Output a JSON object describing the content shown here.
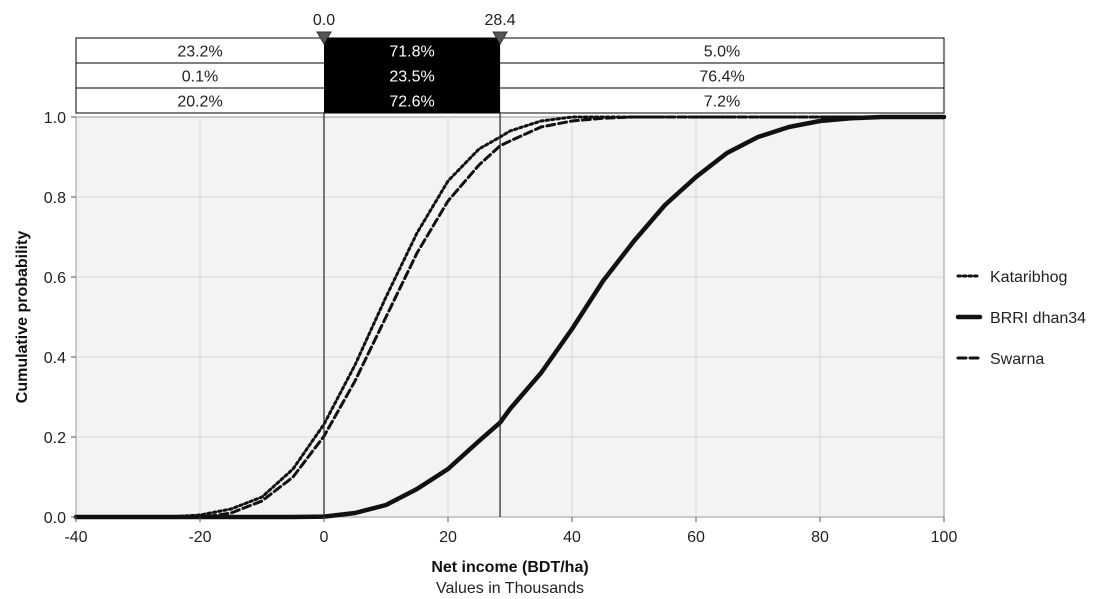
{
  "chart_data": {
    "type": "line",
    "xlabel": "Net income (BDT/ha)",
    "xlabel_sub": "Values in Thousands",
    "ylabel": "Cumulative probability",
    "xlim": [
      -40,
      100
    ],
    "ylim": [
      0,
      1
    ],
    "x_ticks": [
      "-40",
      "-20",
      "0",
      "20",
      "40",
      "60",
      "80",
      "100"
    ],
    "y_ticks": [
      "0.0",
      "0.2",
      "0.4",
      "0.6",
      "0.8",
      "1.0"
    ],
    "grid": true,
    "legend_position": "right",
    "delimiters": {
      "left_label": "0.0",
      "right_label": "28.4",
      "left_value": 0.0,
      "right_value": 28.4
    },
    "band_table": [
      {
        "series": "Kataribhog",
        "left": "23.2%",
        "middle": "71.8%",
        "right": "5.0%"
      },
      {
        "series": "BRRI dhan34",
        "left": "0.1%",
        "middle": "23.5%",
        "right": "76.4%"
      },
      {
        "series": "Swarna",
        "left": "20.2%",
        "middle": "72.6%",
        "right": "7.2%"
      }
    ],
    "series": [
      {
        "name": "Kataribhog",
        "style": "dotted",
        "x": [
          -40,
          -25,
          -20,
          -15,
          -10,
          -5,
          0,
          5,
          10,
          15,
          20,
          25,
          28.4,
          30,
          35,
          40,
          100
        ],
        "y": [
          0.0,
          0.0,
          0.005,
          0.02,
          0.05,
          0.12,
          0.232,
          0.38,
          0.55,
          0.71,
          0.84,
          0.92,
          0.95,
          0.965,
          0.99,
          1.0,
          1.0
        ]
      },
      {
        "name": "BRRI dhan34",
        "style": "solid",
        "x": [
          -40,
          -5,
          0,
          5,
          10,
          15,
          20,
          25,
          28.4,
          30,
          35,
          40,
          45,
          50,
          55,
          60,
          65,
          70,
          75,
          80,
          85,
          90,
          100
        ],
        "y": [
          0.0,
          0.0,
          0.001,
          0.01,
          0.03,
          0.07,
          0.12,
          0.19,
          0.236,
          0.27,
          0.36,
          0.47,
          0.59,
          0.69,
          0.78,
          0.85,
          0.91,
          0.95,
          0.975,
          0.99,
          0.997,
          1.0,
          1.0
        ]
      },
      {
        "name": "Swarna",
        "style": "dashed",
        "x": [
          -40,
          -22,
          -18,
          -15,
          -10,
          -5,
          0,
          5,
          10,
          15,
          20,
          25,
          28.4,
          30,
          35,
          40,
          45,
          50,
          100
        ],
        "y": [
          0.0,
          0.0,
          0.003,
          0.01,
          0.04,
          0.1,
          0.202,
          0.34,
          0.5,
          0.66,
          0.79,
          0.88,
          0.928,
          0.94,
          0.975,
          0.99,
          0.997,
          1.0,
          1.0
        ]
      }
    ]
  }
}
